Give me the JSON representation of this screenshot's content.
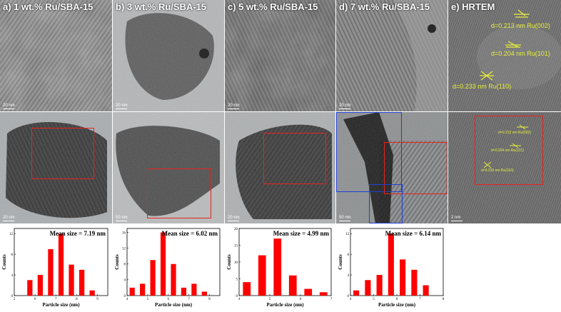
{
  "panels": [
    {
      "id": "a",
      "label": "a) 1 wt.% Ru/SBA-15",
      "scale_top": "20 nm",
      "scale_bottom": "20 nm"
    },
    {
      "id": "b",
      "label": "b) 3 wt.% Ru/SBA-15",
      "scale_top": "20 nm",
      "scale_bottom": "50 nm"
    },
    {
      "id": "c",
      "label": "c) 5 wt.% Ru/SBA-15",
      "scale_top": "20 nm",
      "scale_bottom": "20 nm"
    },
    {
      "id": "d",
      "label": "d) 7 wt.% Ru/SBA-15",
      "scale_top": "20 nm",
      "scale_bottom": "50 nm"
    },
    {
      "id": "e",
      "label": "e) HRTEM",
      "scale_bottom": "2 nm"
    }
  ],
  "hrtem": {
    "top_annotations": [
      "d=0.213 nm Ru(002)",
      "d=0.204 nm Ru(101)",
      "d=0.233 nm Ru(110)"
    ],
    "bottom_annotations": [
      "d=0.213 nm Ru(002)",
      "d=0.204 nm Ru(101)",
      "d=0.233 nm Ru(110)"
    ]
  },
  "colors": {
    "box_red": "#e8231f",
    "box_blue": "#1f3fd6",
    "bar_red": "#ff0000",
    "anno_yellow": "#e8f03a"
  },
  "chart_data": [
    {
      "type": "bar",
      "title": "Mean size = 7.19 nm",
      "xlabel": "Particle size (nm)",
      "ylabel": "Counts",
      "x": [
        5.75,
        6.25,
        6.75,
        7.25,
        7.75,
        8.25,
        8.75
      ],
      "values": [
        3,
        4,
        9,
        12,
        6,
        5,
        1
      ],
      "xlim": [
        5,
        9.5
      ],
      "xticks": [
        5,
        6,
        7,
        8,
        9
      ],
      "ylim": [
        0,
        13
      ],
      "yticks": [
        0,
        4,
        8,
        12
      ]
    },
    {
      "type": "bar",
      "title": "Mean size = 6.02 nm",
      "xlabel": "Particle size (nm)",
      "ylabel": "Counts",
      "x": [
        4.25,
        4.75,
        5.25,
        5.75,
        6.25,
        6.75,
        7.25,
        7.75,
        8.25
      ],
      "values": [
        2,
        3,
        9,
        16,
        8,
        2,
        3,
        1,
        0
      ],
      "xlim": [
        4,
        8.5
      ],
      "xticks": [
        4,
        5,
        6,
        7,
        8
      ],
      "ylim": [
        0,
        17
      ],
      "yticks": [
        0,
        4,
        8,
        12,
        16
      ]
    },
    {
      "type": "bar",
      "title": "Mean size = 4.99 nm",
      "xlabel": "Particle size (nm)",
      "ylabel": "Counts",
      "x": [
        4.25,
        4.75,
        5.25,
        5.75,
        6.25,
        6.75
      ],
      "values": [
        4,
        12,
        17,
        6,
        2,
        1
      ],
      "xlim": [
        4,
        7
      ],
      "xticks": [
        4,
        5,
        6,
        7
      ],
      "ylim": [
        0,
        20
      ],
      "yticks": [
        0,
        5,
        10,
        15,
        20
      ]
    },
    {
      "type": "bar",
      "title": "Mean size = 6.14 nm",
      "xlabel": "Particle size (nm)",
      "ylabel": "Counts",
      "x": [
        4.25,
        4.75,
        5.25,
        5.75,
        6.25,
        6.75,
        7.25,
        7.75
      ],
      "values": [
        1,
        3,
        4,
        12,
        7,
        5,
        2,
        0
      ],
      "xlim": [
        4,
        8
      ],
      "xticks": [
        4,
        5,
        6,
        7,
        8
      ],
      "ylim": [
        0,
        13
      ],
      "yticks": [
        0,
        4,
        8,
        12
      ]
    }
  ]
}
